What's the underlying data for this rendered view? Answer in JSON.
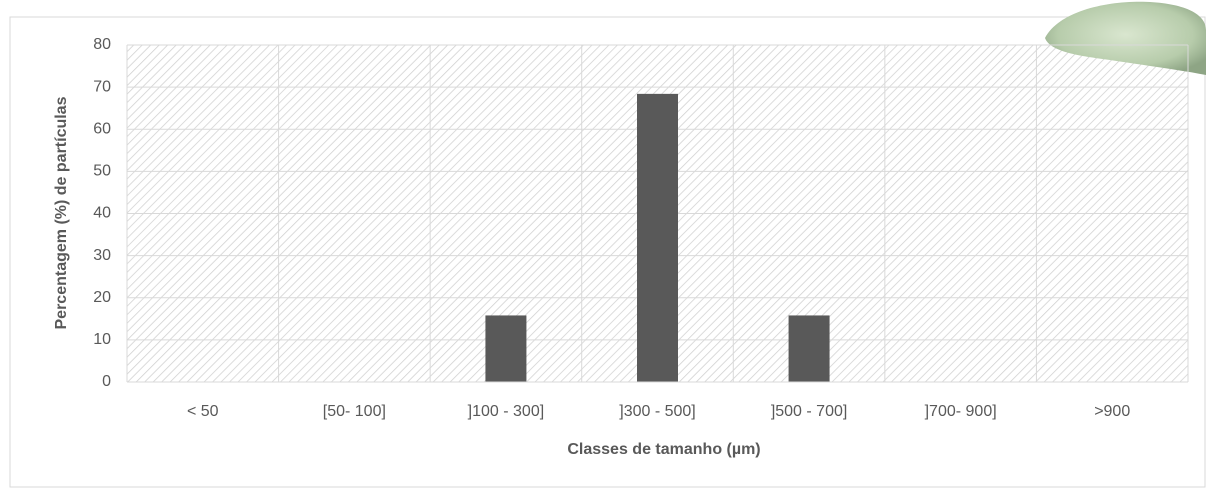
{
  "chart_data": {
    "type": "bar",
    "categories": [
      "< 50",
      "[50- 100]",
      "]100 - 300]",
      "]300 - 500]",
      "]500 - 700]",
      "]700- 900]",
      ">900"
    ],
    "values": [
      0,
      0,
      15.8,
      68.4,
      15.8,
      0,
      0
    ],
    "color": "#595959",
    "x_label": "Classes de tamanho (µm)",
    "y_label": "Percentagem (%) de partículas",
    "ylim": [
      0,
      80
    ],
    "yticks": [
      0,
      10,
      20,
      30,
      40,
      50,
      60,
      70,
      80
    ],
    "grid": true
  }
}
